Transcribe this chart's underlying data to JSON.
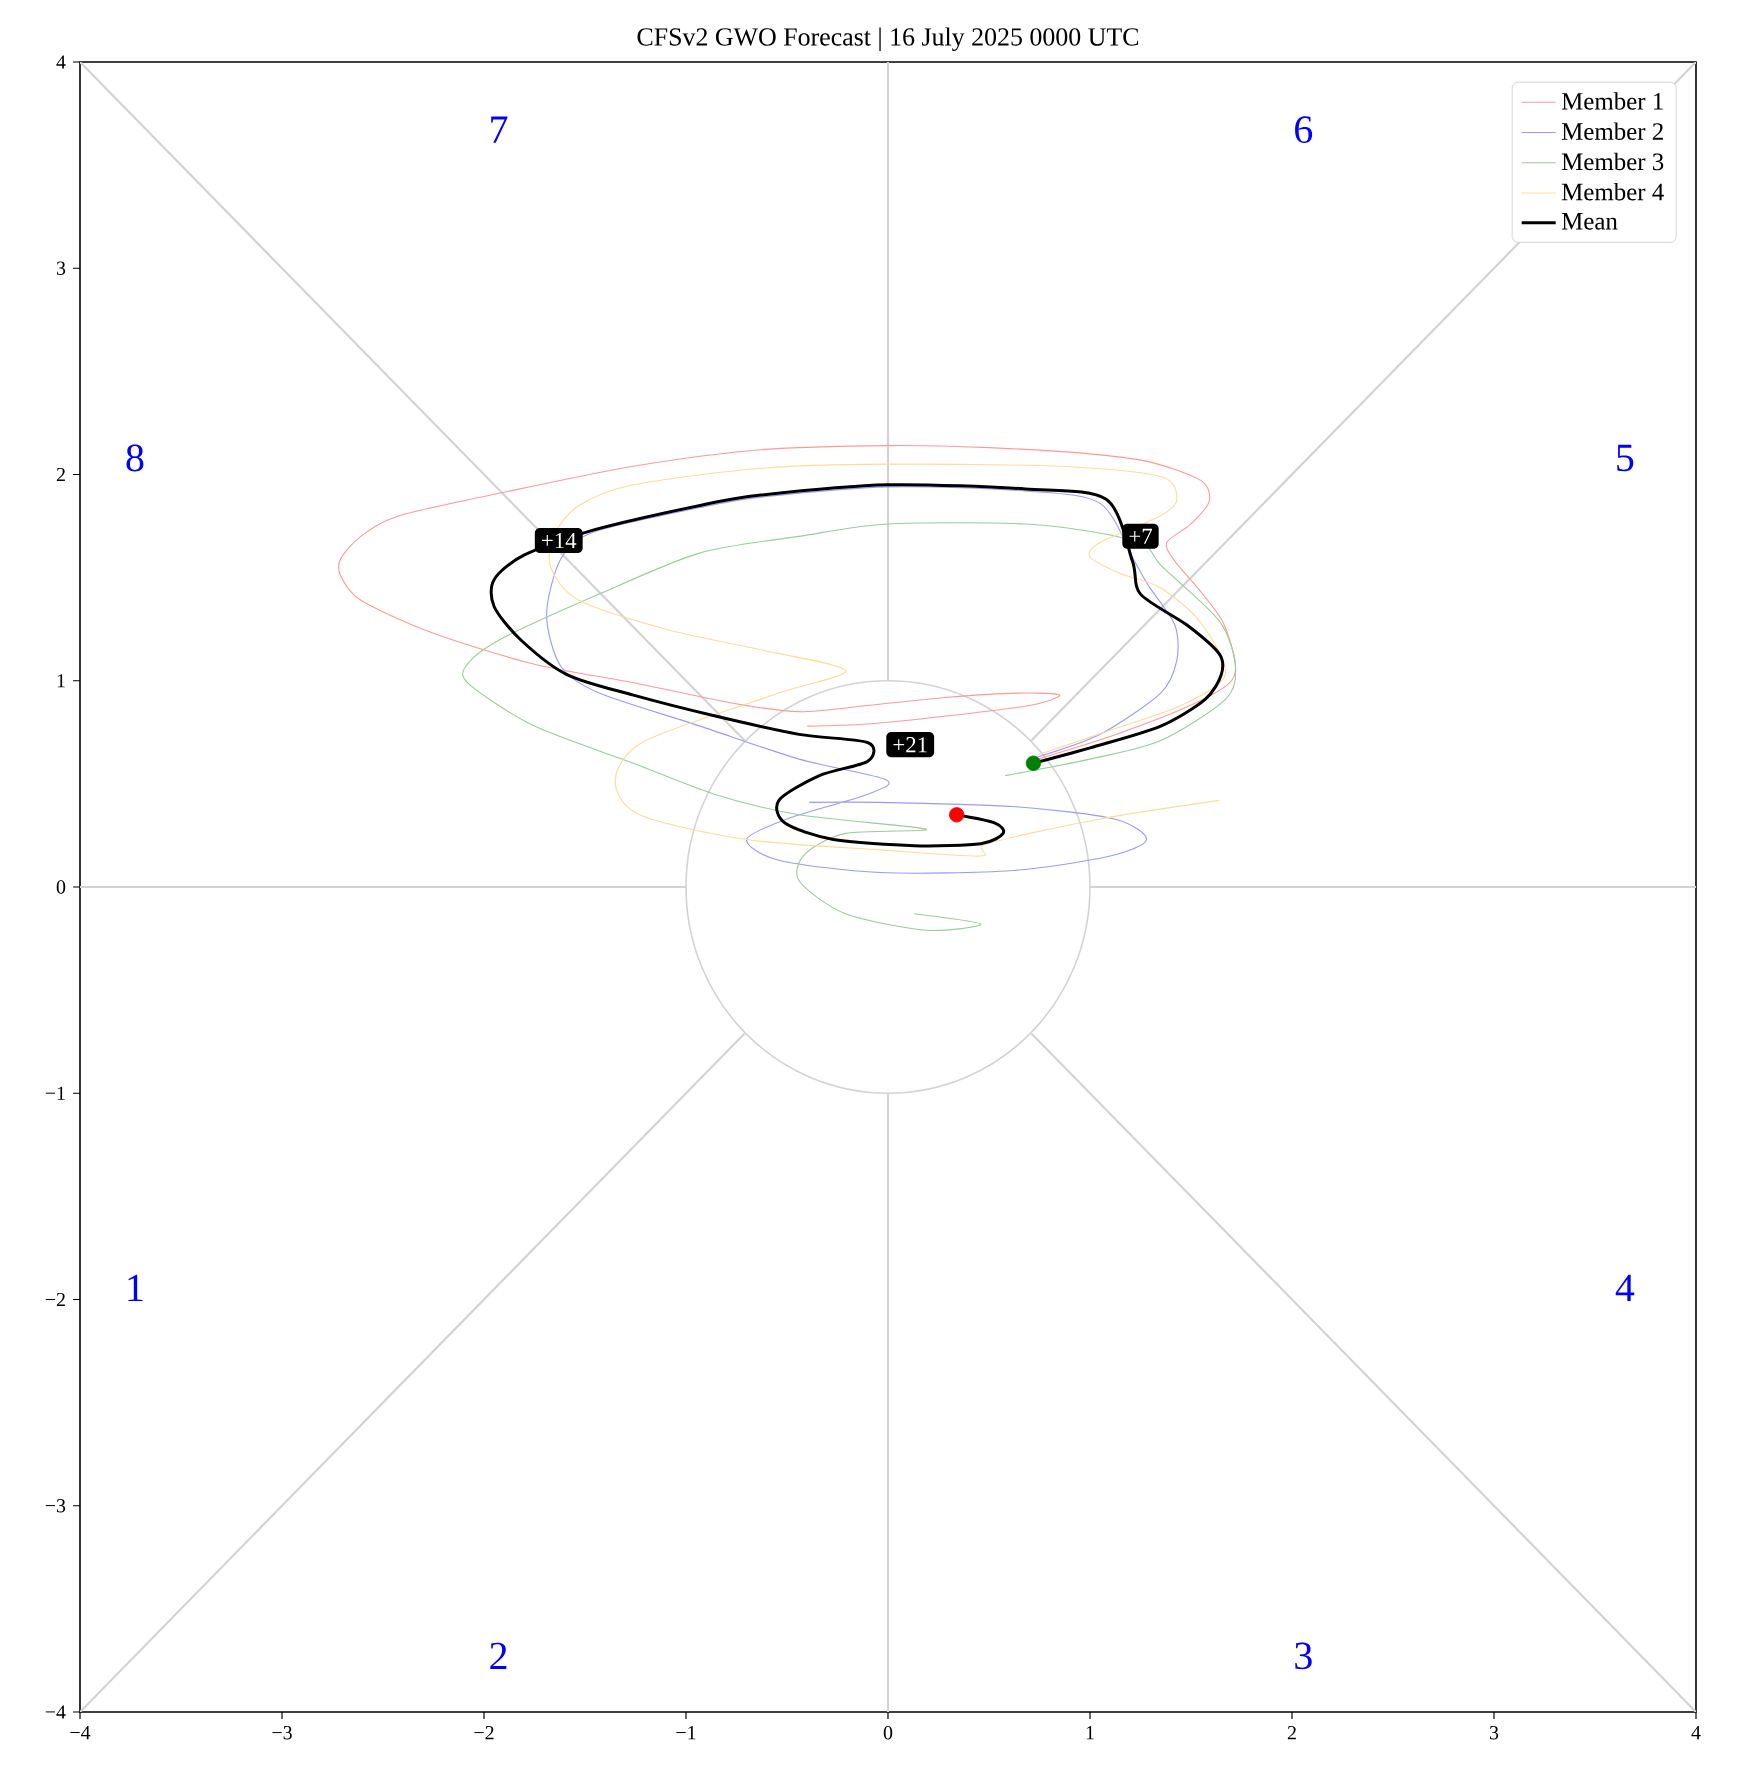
{
  "chart_data": {
    "type": "line",
    "title": "CFSv2 GWO Forecast  |  16 July 2025 0000 UTC",
    "xlim": [
      -4,
      4
    ],
    "ylim": [
      -4,
      4
    ],
    "xticks": [
      {
        "value": -4,
        "label": "−4"
      },
      {
        "value": -3,
        "label": "−3"
      },
      {
        "value": -2,
        "label": "−2"
      },
      {
        "value": -1,
        "label": "−1"
      },
      0,
      1,
      2,
      3,
      4
    ],
    "yticks": [
      {
        "value": -4,
        "label": "−4"
      },
      {
        "value": -3,
        "label": "−3"
      },
      {
        "value": -2,
        "label": "−2"
      },
      {
        "value": -1,
        "label": "−1"
      },
      0,
      1,
      2,
      3,
      4
    ],
    "legend": "top right",
    "series": [
      {
        "type": "line",
        "color": "#d3d3d3",
        "x": [
          1,
          4
        ],
        "values": [
          0,
          0
        ]
      },
      {
        "type": "line",
        "color": "#d3d3d3",
        "x": [
          0.71,
          4
        ],
        "values": [
          0.71,
          4
        ]
      },
      {
        "type": "line",
        "color": "#d3d3d3",
        "x": [
          0,
          0
        ],
        "values": [
          1,
          4
        ]
      },
      {
        "type": "line",
        "color": "#d3d3d3",
        "x": [
          -4,
          -0.71
        ],
        "values": [
          4,
          0.71
        ]
      },
      {
        "type": "line",
        "color": "#d3d3d3",
        "x": [
          -4,
          -1
        ],
        "values": [
          0,
          0
        ]
      },
      {
        "type": "line",
        "color": "#d3d3d3",
        "x": [
          -4,
          -0.71
        ],
        "values": [
          -4,
          -0.71
        ]
      },
      {
        "type": "line",
        "color": "#d3d3d3",
        "x": [
          0,
          0
        ],
        "values": [
          -4,
          -1
        ]
      },
      {
        "type": "line",
        "color": "#d3d3d3",
        "x": [
          0.71,
          4
        ],
        "values": [
          -0.71,
          -4
        ]
      },
      {
        "name": "Member 1",
        "color": "#ff9999",
        "x": [
          0.74,
          1.1,
          1.45,
          1.68,
          1.72,
          1.66,
          1.55,
          1.42,
          1.38,
          1.5,
          1.59,
          1.55,
          1.3,
          1.0,
          0.5,
          0,
          -0.63,
          -1.26,
          -1.92,
          -2.42,
          -2.61,
          -2.71,
          -2.71,
          -2.61,
          -2.25,
          -1.75,
          -1.26,
          -0.76,
          -0.44,
          -0.1,
          0.3,
          0.65,
          0.85,
          0.7,
          0.3,
          -0.1,
          -0.4
        ],
        "values": [
          0.62,
          0.73,
          0.86,
          0.98,
          1.08,
          1.28,
          1.43,
          1.58,
          1.67,
          1.76,
          1.87,
          1.97,
          2.06,
          2.1,
          2.13,
          2.14,
          2.12,
          2.04,
          1.91,
          1.8,
          1.7,
          1.59,
          1.51,
          1.39,
          1.23,
          1.08,
          0.99,
          0.89,
          0.85,
          0.88,
          0.92,
          0.94,
          0.93,
          0.88,
          0.83,
          0.79,
          0.78
        ]
      },
      {
        "name": "Member 2",
        "color": "#9999ff",
        "x": [
          0.74,
          1.05,
          1.35,
          1.43,
          1.42,
          1.29,
          1.22,
          1.05,
          0.68,
          0,
          -0.63,
          -0.93,
          -1.46,
          -1.62,
          -1.69,
          -1.62,
          -1.43,
          -0.93,
          -0.44,
          -0.01,
          -0.1,
          -0.5,
          -0.7,
          -0.54,
          -0.04,
          0.62,
          1.1,
          1.28,
          1.12,
          0.62,
          -0.04,
          -0.39
        ],
        "values": [
          0.63,
          0.74,
          0.94,
          1.1,
          1.27,
          1.46,
          1.58,
          1.86,
          1.92,
          1.94,
          1.89,
          1.84,
          1.72,
          1.59,
          1.32,
          1.07,
          0.94,
          0.78,
          0.62,
          0.52,
          0.45,
          0.33,
          0.23,
          0.13,
          0.07,
          0.08,
          0.15,
          0.23,
          0.33,
          0.39,
          0.41,
          0.41
        ]
      },
      {
        "name": "Member 3",
        "color": "#99cc99",
        "x": [
          0.58,
          1.0,
          1.35,
          1.67,
          1.72,
          1.64,
          1.35,
          1.28,
          1.08,
          0.68,
          0,
          -0.44,
          -0.93,
          -1.43,
          -1.92,
          -2.09,
          -2.07,
          -1.75,
          -1.26,
          -0.86,
          -0.44,
          0.19,
          -0.21,
          -0.41,
          -0.44,
          -0.21,
          0.19,
          0.46,
          0.13
        ],
        "values": [
          0.54,
          0.62,
          0.71,
          0.91,
          1.07,
          1.29,
          1.56,
          1.65,
          1.71,
          1.76,
          1.76,
          1.7,
          1.62,
          1.42,
          1.2,
          1.07,
          0.98,
          0.78,
          0.6,
          0.45,
          0.35,
          0.28,
          0.26,
          0.16,
          0.03,
          -0.13,
          -0.21,
          -0.18,
          -0.13
        ]
      },
      {
        "name": "Member 4",
        "color": "#ffdb99",
        "x": [
          0.74,
          1.1,
          1.45,
          1.67,
          1.55,
          1.35,
          1.15,
          1.0,
          1.05,
          1.35,
          1.43,
          1.35,
          0.85,
          0,
          -0.63,
          -1.26,
          -1.53,
          -1.65,
          -1.67,
          -1.53,
          -1.1,
          -0.63,
          -0.21,
          -0.54,
          -1.2,
          -1.35,
          -1.23,
          -0.7,
          -0.04,
          0.46,
          0.49,
          1.05,
          1.64
        ],
        "values": [
          0.64,
          0.76,
          0.88,
          1.03,
          1.28,
          1.45,
          1.52,
          1.6,
          1.67,
          1.8,
          1.88,
          1.99,
          2.04,
          2.05,
          2.03,
          1.95,
          1.85,
          1.71,
          1.55,
          1.39,
          1.25,
          1.15,
          1.05,
          0.94,
          0.71,
          0.52,
          0.35,
          0.23,
          0.18,
          0.15,
          0.21,
          0.33,
          0.42
        ]
      },
      {
        "name": "Mean",
        "color": "#000000",
        "x": [
          0.72,
          1.02,
          1.35,
          1.57,
          1.65,
          1.64,
          1.48,
          1.25,
          1.21,
          1.08,
          0.68,
          0,
          -0.63,
          -0.93,
          -1.46,
          -1.8,
          -1.95,
          -1.95,
          -1.82,
          -1.59,
          -1.26,
          -0.86,
          -0.44,
          -0.1,
          -0.1,
          -0.34,
          -0.54,
          -0.51,
          -0.27,
          0.13,
          0.46,
          0.57,
          0.53,
          0.34
        ],
        "values": [
          0.6,
          0.68,
          0.78,
          0.91,
          1.03,
          1.13,
          1.27,
          1.42,
          1.58,
          1.88,
          1.93,
          1.95,
          1.9,
          1.85,
          1.73,
          1.61,
          1.49,
          1.36,
          1.2,
          1.03,
          0.93,
          0.83,
          0.74,
          0.7,
          0.61,
          0.54,
          0.42,
          0.31,
          0.23,
          0.2,
          0.21,
          0.26,
          0.31,
          0.35
        ]
      },
      {
        "type": "scatter",
        "color": "#008000",
        "x": [
          0.72
        ],
        "values": [
          0.6
        ]
      },
      {
        "type": "scatter",
        "color": "#ff0000",
        "x": [
          0.34
        ],
        "values": [
          0.35
        ]
      }
    ],
    "annotations": [
      "1",
      "2",
      "3",
      "4",
      "5",
      "6",
      "7",
      "8",
      {
        "text": "+7",
        "x": 1.25,
        "y": 1.7
      },
      {
        "text": "+14",
        "x": -1.63,
        "y": 1.68
      },
      {
        "text": "+21",
        "x": 0.11,
        "y": 0.69
      }
    ]
  }
}
